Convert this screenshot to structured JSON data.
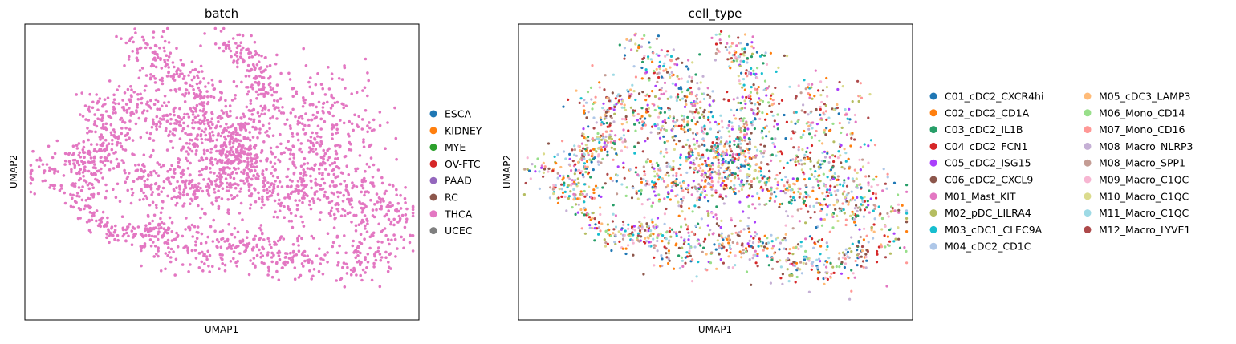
{
  "chart_data": [
    {
      "type": "scatter",
      "title": "batch",
      "xlabel": "UMAP1",
      "ylabel": "UMAP2",
      "xlim": [
        0,
        1
      ],
      "ylim": [
        0,
        1
      ],
      "ticks": "none",
      "grid": false,
      "legend_position": "right",
      "point_count": 2600,
      "colored_by": "THCA",
      "legend": [
        {
          "name": "ESCA",
          "color": "#1f77b4"
        },
        {
          "name": "KIDNEY",
          "color": "#ff7f0e"
        },
        {
          "name": "MYE",
          "color": "#2ca02c"
        },
        {
          "name": "OV-FTC",
          "color": "#d62728"
        },
        {
          "name": "PAAD",
          "color": "#9467bd"
        },
        {
          "name": "RC",
          "color": "#8c564b"
        },
        {
          "name": "THCA",
          "color": "#e377c2"
        },
        {
          "name": "UCEC",
          "color": "#7f7f7f"
        }
      ]
    },
    {
      "type": "scatter",
      "title": "cell_type",
      "xlabel": "UMAP1",
      "ylabel": "UMAP2",
      "xlim": [
        0,
        1
      ],
      "ylim": [
        0,
        1
      ],
      "ticks": "none",
      "grid": false,
      "legend_position": "right",
      "point_count": 2600,
      "legend": [
        {
          "name": "C01_cDC2_CXCR4hi",
          "color": "#1f77b4"
        },
        {
          "name": "C02_cDC2_CD1A",
          "color": "#ff7f0e"
        },
        {
          "name": "C03_cDC2_IL1B",
          "color": "#279e68"
        },
        {
          "name": "C04_cDC2_FCN1",
          "color": "#d62728"
        },
        {
          "name": "C05_cDC2_ISG15",
          "color": "#aa40fc"
        },
        {
          "name": "C06_cDC2_CXCL9",
          "color": "#8c564b"
        },
        {
          "name": "M01_Mast_KIT",
          "color": "#e377c2"
        },
        {
          "name": "M02_pDC_LILRA4",
          "color": "#b5bd61"
        },
        {
          "name": "M03_cDC1_CLEC9A",
          "color": "#17becf"
        },
        {
          "name": "M04_cDC2_CD1C",
          "color": "#aec7e8"
        },
        {
          "name": "M05_cDC3_LAMP3",
          "color": "#ffbb78"
        },
        {
          "name": "M06_Mono_CD14",
          "color": "#98df8a"
        },
        {
          "name": "M07_Mono_CD16",
          "color": "#ff9896"
        },
        {
          "name": "M08_Macro_NLRP3",
          "color": "#c5b0d5"
        },
        {
          "name": "M08_Macro_SPP1",
          "color": "#c49c94"
        },
        {
          "name": "M09_Macro_C1QC",
          "color": "#f7b6d2"
        },
        {
          "name": "M10_Macro_C1QC",
          "color": "#dbdb8d"
        },
        {
          "name": "M11_Macro_C1QC",
          "color": "#9edae5"
        },
        {
          "name": "M12_Macro_LYVE1",
          "color": "#ad494a"
        }
      ]
    }
  ]
}
